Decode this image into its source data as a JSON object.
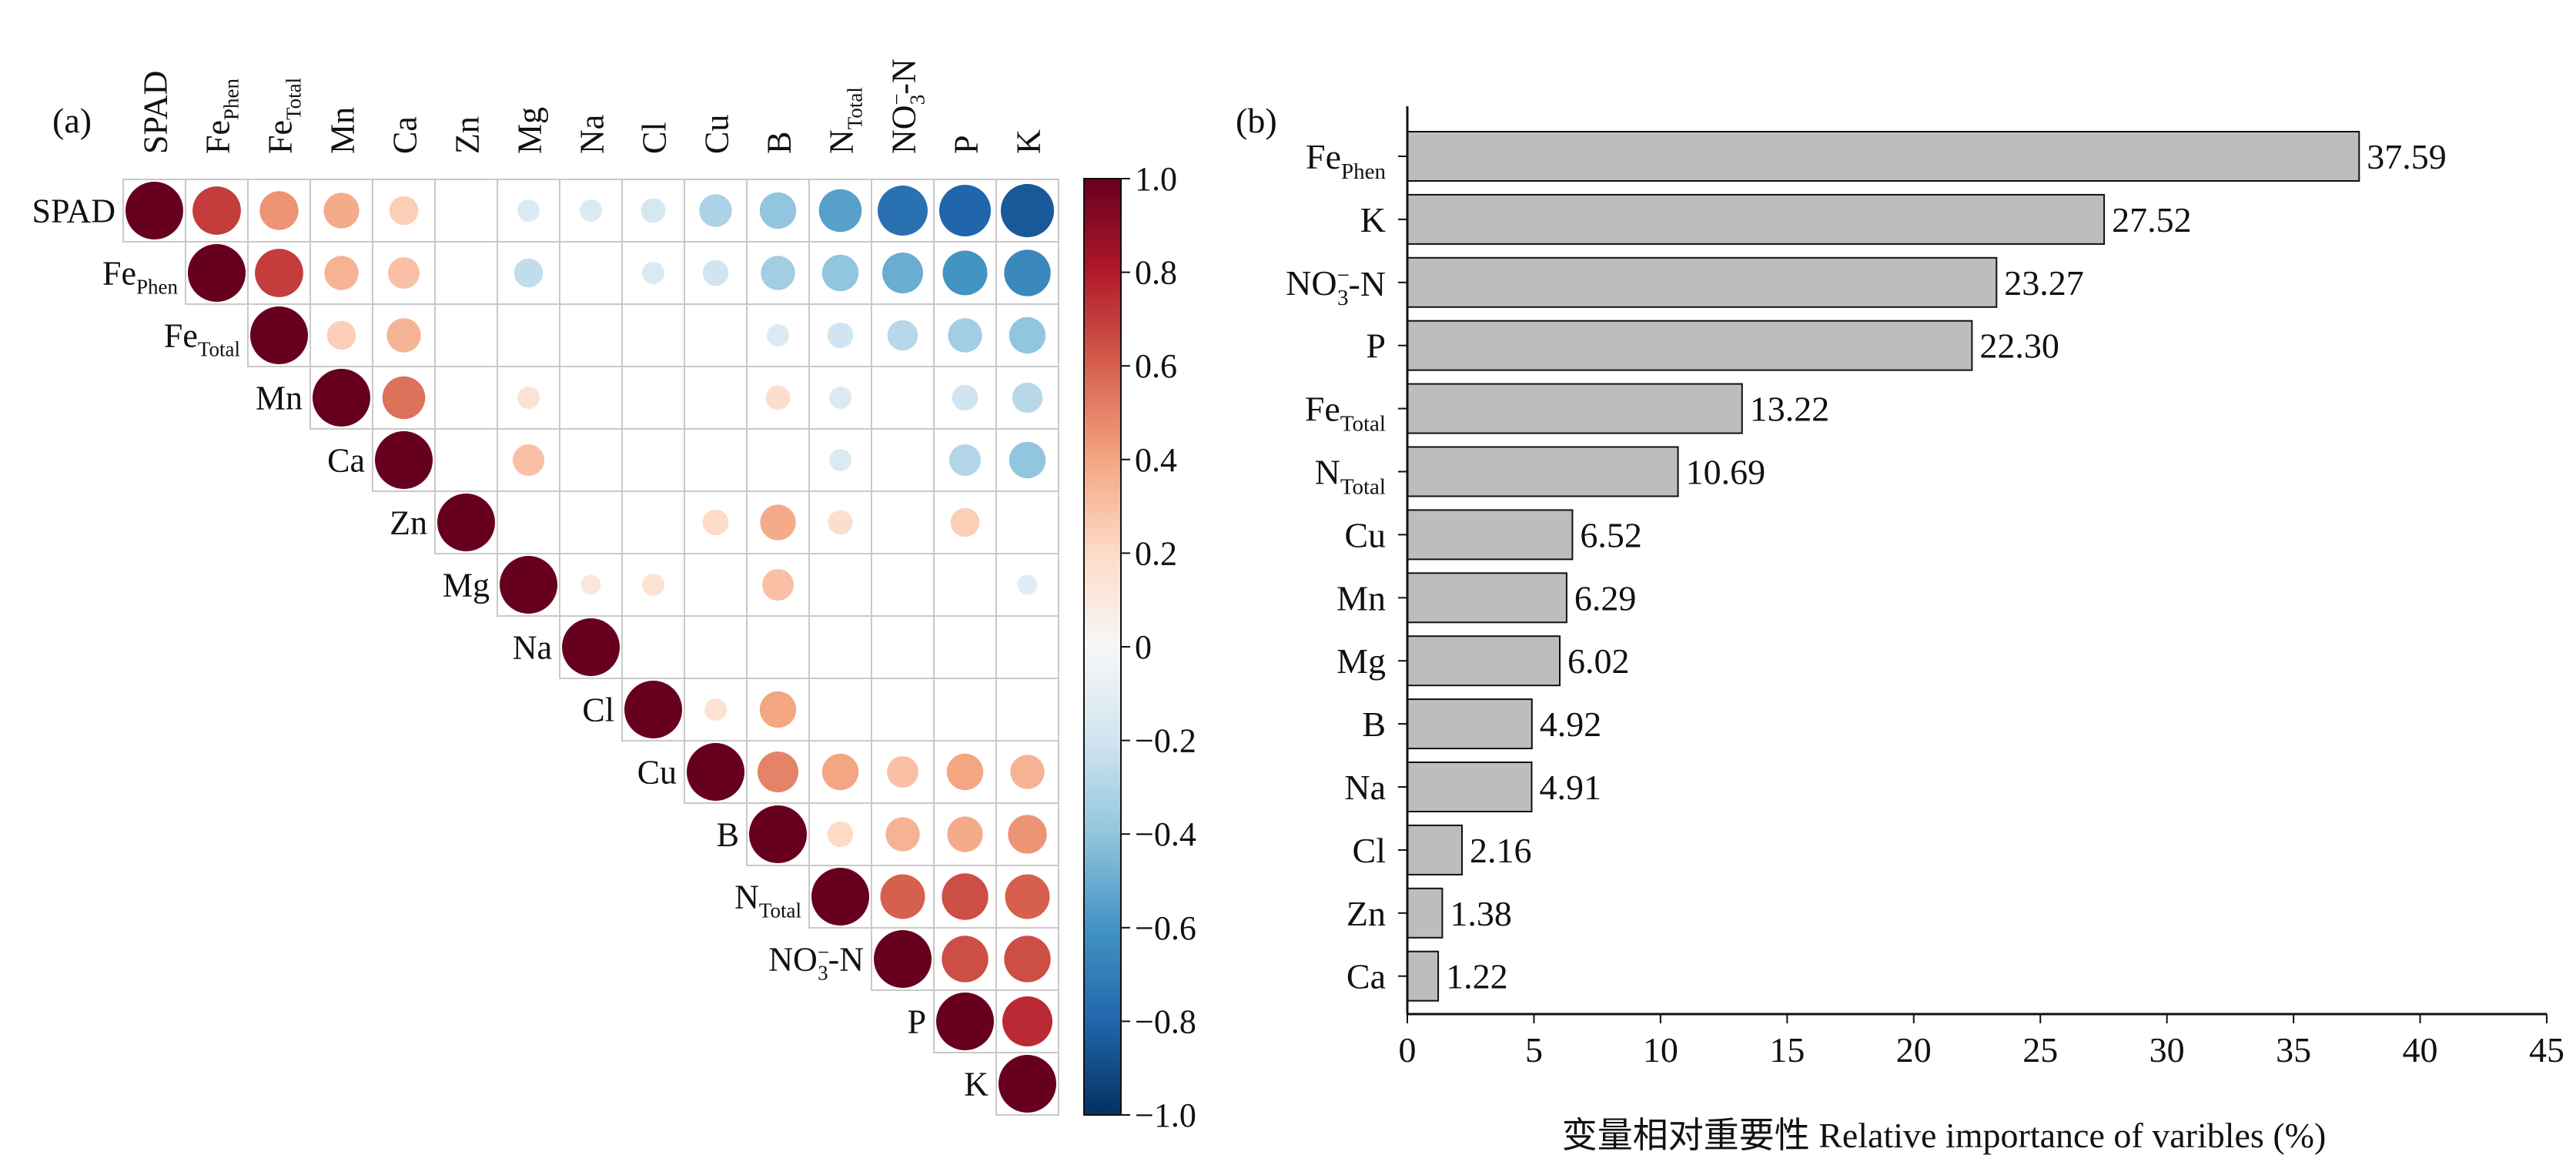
{
  "chart_data": [
    {
      "type": "heatmap",
      "panel_label": "(a)",
      "variables": [
        {
          "base": "SPAD",
          "sub": ""
        },
        {
          "base": "Fe",
          "sub": "Phen"
        },
        {
          "base": "Fe",
          "sub": "Total"
        },
        {
          "base": "Mn",
          "sub": ""
        },
        {
          "base": "Ca",
          "sub": ""
        },
        {
          "base": "Zn",
          "sub": ""
        },
        {
          "base": "Mg",
          "sub": ""
        },
        {
          "base": "Na",
          "sub": ""
        },
        {
          "base": "Cl",
          "sub": ""
        },
        {
          "base": "Cu",
          "sub": ""
        },
        {
          "base": "B",
          "sub": ""
        },
        {
          "base": "N",
          "sub": "Total"
        },
        {
          "base": "NO",
          "sub": "3",
          "sup": "−",
          "tail": "-N"
        },
        {
          "base": "P",
          "sub": ""
        },
        {
          "base": "K",
          "sub": ""
        }
      ],
      "correlations": [
        [
          1.0,
          0.7,
          0.45,
          0.38,
          0.25,
          0.0,
          -0.15,
          -0.15,
          -0.18,
          -0.32,
          -0.4,
          -0.55,
          -0.75,
          -0.8,
          -0.85
        ],
        [
          null,
          1.0,
          0.7,
          0.35,
          0.3,
          0.0,
          -0.25,
          0.0,
          -0.15,
          -0.2,
          -0.35,
          -0.4,
          -0.5,
          -0.6,
          -0.65
        ],
        [
          null,
          null,
          1.0,
          0.25,
          0.35,
          0.0,
          0.0,
          0.0,
          0.0,
          0.0,
          -0.15,
          -0.2,
          -0.28,
          -0.35,
          -0.4
        ],
        [
          null,
          null,
          null,
          1.0,
          0.55,
          0.0,
          0.15,
          0.0,
          0.0,
          0.0,
          0.18,
          -0.15,
          0.0,
          -0.2,
          -0.28
        ],
        [
          null,
          null,
          null,
          null,
          1.0,
          0.0,
          0.3,
          0.0,
          0.0,
          0.0,
          0.0,
          -0.15,
          0.0,
          -0.3,
          -0.4
        ],
        [
          null,
          null,
          null,
          null,
          null,
          1.0,
          0.0,
          0.0,
          0.0,
          0.2,
          0.38,
          0.18,
          0.0,
          0.25,
          0.0
        ],
        [
          null,
          null,
          null,
          null,
          null,
          null,
          1.0,
          0.12,
          0.15,
          0.0,
          0.3,
          0.0,
          0.0,
          0.0,
          -0.12
        ],
        [
          null,
          null,
          null,
          null,
          null,
          null,
          null,
          1.0,
          0.0,
          0.0,
          0.0,
          0.0,
          0.0,
          0.0,
          0.0
        ],
        [
          null,
          null,
          null,
          null,
          null,
          null,
          null,
          null,
          1.0,
          0.15,
          0.4,
          0.0,
          0.0,
          0.0,
          0.0
        ],
        [
          null,
          null,
          null,
          null,
          null,
          null,
          null,
          null,
          null,
          1.0,
          0.5,
          0.4,
          0.3,
          0.4,
          0.35
        ],
        [
          null,
          null,
          null,
          null,
          null,
          null,
          null,
          null,
          null,
          null,
          1.0,
          0.2,
          0.35,
          0.38,
          0.45
        ],
        [
          null,
          null,
          null,
          null,
          null,
          null,
          null,
          null,
          null,
          null,
          null,
          1.0,
          0.6,
          0.65,
          0.6
        ],
        [
          null,
          null,
          null,
          null,
          null,
          null,
          null,
          null,
          null,
          null,
          null,
          null,
          1.0,
          0.65,
          0.65
        ],
        [
          null,
          null,
          null,
          null,
          null,
          null,
          null,
          null,
          null,
          null,
          null,
          null,
          null,
          1.0,
          0.75
        ],
        [
          null,
          null,
          null,
          null,
          null,
          null,
          null,
          null,
          null,
          null,
          null,
          null,
          null,
          null,
          1.0
        ]
      ],
      "colorbar": {
        "range": [
          -1.0,
          1.0
        ],
        "ticks": [
          "1.0",
          "0.8",
          "0.6",
          "0.4",
          "0.2",
          "0",
          "−0.2",
          "−0.4",
          "−0.6",
          "−0.8",
          "−1.0"
        ],
        "tick_values": [
          1.0,
          0.8,
          0.6,
          0.4,
          0.2,
          0,
          -0.2,
          -0.4,
          -0.6,
          -0.8,
          -1.0
        ],
        "colors": [
          "#053061",
          "#2166ac",
          "#4393c3",
          "#92c5de",
          "#d1e5f0",
          "#f7f7f7",
          "#fddbc7",
          "#f4a582",
          "#d6604d",
          "#b2182b",
          "#67001f"
        ]
      }
    },
    {
      "type": "bar",
      "orientation": "horizontal",
      "panel_label": "(b)",
      "categories": [
        {
          "base": "Fe",
          "sub": "Phen"
        },
        {
          "base": "K",
          "sub": ""
        },
        {
          "base": "NO",
          "sub": "3",
          "sup": "−",
          "tail": "-N"
        },
        {
          "base": "P",
          "sub": ""
        },
        {
          "base": "Fe",
          "sub": "Total"
        },
        {
          "base": "N",
          "sub": "Total"
        },
        {
          "base": "Cu",
          "sub": ""
        },
        {
          "base": "Mn",
          "sub": ""
        },
        {
          "base": "Mg",
          "sub": ""
        },
        {
          "base": "B",
          "sub": ""
        },
        {
          "base": "Na",
          "sub": ""
        },
        {
          "base": "Cl",
          "sub": ""
        },
        {
          "base": "Zn",
          "sub": ""
        },
        {
          "base": "Ca",
          "sub": ""
        }
      ],
      "values": [
        37.59,
        27.52,
        23.27,
        22.3,
        13.22,
        10.69,
        6.52,
        6.29,
        6.02,
        4.92,
        4.91,
        2.16,
        1.38,
        1.22
      ],
      "value_labels": [
        "37.59",
        "27.52",
        "23.27",
        "22.30",
        "13.22",
        "10.69",
        "6.52",
        "6.29",
        "6.02",
        "4.92",
        "4.91",
        "2.16",
        "1.38",
        "1.22"
      ],
      "xlabel": "变量相对重要性 Relative importance of varibles (%)",
      "xlim": [
        0,
        45
      ],
      "xticks": [
        0,
        5,
        10,
        15,
        20,
        25,
        30,
        35,
        40,
        45
      ],
      "bar_color": "#bdbdbd",
      "grid": false
    }
  ]
}
